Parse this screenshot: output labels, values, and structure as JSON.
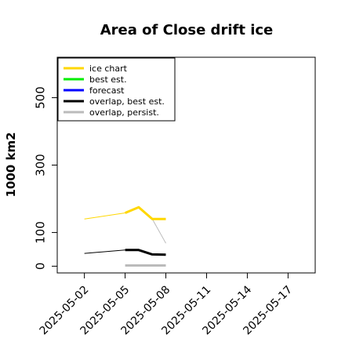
{
  "chart_data": {
    "type": "line",
    "title": "Area of Close drift ice",
    "xlabel": "",
    "ylabel": "1000 km2",
    "x_tick_labels": [
      "2025-05-02",
      "2025-05-05",
      "2025-05-08",
      "2025-05-11",
      "2025-05-14",
      "2025-05-17"
    ],
    "highlighted_tick": "2025-05-08",
    "highlight_color": "#228B22",
    "xlim": [
      "2025-04-30",
      "2025-05-19"
    ],
    "ylim": [
      -20,
      620
    ],
    "y_ticks": [
      0,
      100,
      300,
      500
    ],
    "grid": false,
    "legend_position": "top-left",
    "series": [
      {
        "name": "ice chart",
        "color": "#FFD700",
        "line_width": 3,
        "points": [
          {
            "x": "2025-05-05",
            "y": 158
          },
          {
            "x": "2025-05-06",
            "y": 175
          },
          {
            "x": "2025-05-07",
            "y": 140
          },
          {
            "x": "2025-05-08",
            "y": 140
          }
        ]
      },
      {
        "name": "best est.",
        "color": "#00EE00",
        "line_width": 3,
        "points": []
      },
      {
        "name": "forecast",
        "color": "#0000FF",
        "line_width": 3,
        "points": []
      },
      {
        "name": "overlap, best est.",
        "color": "#000000",
        "line_width": 3,
        "points": [
          {
            "x": "2025-05-05",
            "y": 48
          },
          {
            "x": "2025-05-06",
            "y": 48
          },
          {
            "x": "2025-05-07",
            "y": 35
          },
          {
            "x": "2025-05-08",
            "y": 34
          }
        ]
      },
      {
        "name": "overlap, persist.",
        "color": "#BBBBBB",
        "line_width": 3,
        "points": [
          {
            "x": "2025-05-05",
            "y": 2
          },
          {
            "x": "2025-05-06",
            "y": 2
          },
          {
            "x": "2025-05-07",
            "y": 2
          },
          {
            "x": "2025-05-08",
            "y": 2
          }
        ]
      }
    ],
    "connectors": [
      {
        "color": "#FFD700",
        "from": {
          "x": "2025-05-02",
          "y": 140
        },
        "to": {
          "x": "2025-05-05",
          "y": 158
        }
      },
      {
        "color": "#000000",
        "from": {
          "x": "2025-05-02",
          "y": 38
        },
        "to": {
          "x": "2025-05-05",
          "y": 48
        }
      },
      {
        "color": "#BBBBBB",
        "from": {
          "x": "2025-05-07",
          "y": 140
        },
        "to": {
          "x": "2025-05-08",
          "y": 68
        }
      }
    ]
  }
}
